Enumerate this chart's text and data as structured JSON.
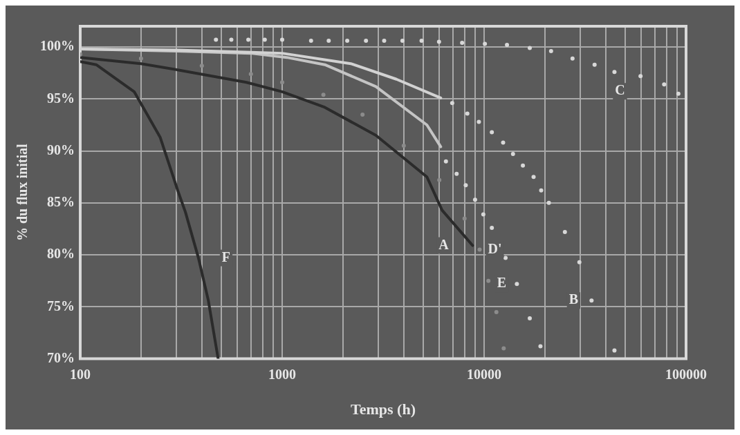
{
  "chart_data": {
    "type": "line",
    "xlabel": "Temps (h)",
    "ylabel": "% du flux initial",
    "log": "x",
    "grid": true,
    "legend": false,
    "xlim": [
      100,
      100000
    ],
    "ylim": [
      70,
      102
    ],
    "xticks": [
      100,
      {
        "value": 200,
        "label": null
      },
      {
        "value": 300,
        "label": null
      },
      {
        "value": 400,
        "label": null
      },
      {
        "value": 500,
        "label": null
      },
      {
        "value": 600,
        "label": null
      },
      {
        "value": 700,
        "label": null
      },
      {
        "value": 800,
        "label": null
      },
      {
        "value": 900,
        "label": null
      },
      1000,
      {
        "value": 2000,
        "label": null
      },
      {
        "value": 3000,
        "label": null
      },
      {
        "value": 4000,
        "label": null
      },
      {
        "value": 5000,
        "label": null
      },
      {
        "value": 6000,
        "label": null
      },
      {
        "value": 7000,
        "label": null
      },
      {
        "value": 8000,
        "label": null
      },
      {
        "value": 9000,
        "label": null
      },
      10000,
      {
        "value": 20000,
        "label": null
      },
      {
        "value": 30000,
        "label": null
      },
      {
        "value": 40000,
        "label": null
      },
      {
        "value": 50000,
        "label": null
      },
      {
        "value": 60000,
        "label": null
      },
      {
        "value": 70000,
        "label": null
      },
      {
        "value": 80000,
        "label": null
      },
      {
        "value": 90000,
        "label": null
      },
      100000
    ],
    "yticks": [
      {
        "value": 70,
        "label": "70%"
      },
      {
        "value": 75,
        "label": "75%"
      },
      {
        "value": 80,
        "label": "80%"
      },
      {
        "value": 85,
        "label": "85%"
      },
      {
        "value": 90,
        "label": "90%"
      },
      {
        "value": 95,
        "label": "95%"
      },
      {
        "value": 100,
        "label": "100%"
      }
    ],
    "series": [
      {
        "type": "scatter",
        "name": "D'",
        "marker": "circle",
        "color": "#8c8c8c",
        "x": [
          100,
          200,
          400,
          700,
          1000,
          1600,
          2500,
          4000,
          6000,
          8000,
          9500,
          10500,
          11500,
          12500
        ],
        "values": [
          99.3,
          98.9,
          98.2,
          97.4,
          96.6,
          95.4,
          93.5,
          90.5,
          87.2,
          83.5,
          80.5,
          77.5,
          74.5,
          71
        ]
      },
      {
        "line_style": "solid",
        "color": "#d2d2d2",
        "x": [
          100,
          300,
          700,
          1000,
          2188,
          3680,
          6100
        ],
        "values": [
          99.8,
          99.7,
          99.5,
          99.4,
          98.4,
          96.9,
          95.1
        ]
      },
      {
        "line_style": "solid",
        "color": "#c4c4c4",
        "x": [
          100,
          300,
          700,
          1054,
          1626,
          2911,
          5210,
          6100
        ],
        "values": [
          99.8,
          99.6,
          99.4,
          99.0,
          98.3,
          96.2,
          92.5,
          90.4
        ]
      },
      {
        "name": "A",
        "line_style": "solid",
        "color": "#2b2b2b",
        "x": [
          100,
          200,
          304,
          665,
          1000,
          1626,
          2911,
          5210,
          6190,
          8770
        ],
        "values": [
          99.0,
          98.4,
          97.8,
          96.6,
          95.7,
          94.2,
          91.5,
          87.5,
          84.3,
          80.9
        ]
      },
      {
        "name": "F",
        "line_style": "solid",
        "color": "#2b2b2b",
        "x": [
          100,
          120,
          185,
          249,
          304,
          332,
          385,
          431,
          482
        ],
        "values": [
          98.6,
          98.3,
          95.7,
          91.3,
          86.2,
          84.1,
          79.7,
          75.6,
          70
        ]
      },
      {
        "type": "scatter",
        "name": "B",
        "marker": "circle",
        "color": "#d8d8d8",
        "x": [
          6950,
          8260,
          9420,
          10920,
          12420,
          13900,
          15560,
          17580,
          19170,
          20920,
          25120,
          29630,
          34040,
          44200
        ],
        "values": [
          94.6,
          93.6,
          92.8,
          91.8,
          90.8,
          89.7,
          88.6,
          87.5,
          86.2,
          85.0,
          82.2,
          79.3,
          75.6,
          70.8
        ]
      },
      {
        "type": "scatter",
        "name": "E",
        "marker": "circle",
        "color": "#d8d8d8",
        "x": [
          6470,
          7310,
          8110,
          9020,
          9910,
          10920,
          12770,
          14530,
          16830,
          19010
        ],
        "values": [
          89.0,
          87.8,
          86.7,
          85.3,
          83.9,
          82.6,
          79.7,
          77.2,
          73.9,
          71.2
        ]
      },
      {
        "type": "scatter",
        "name": "C",
        "marker": "circle",
        "color": "#d8d8d8",
        "x": [
          470,
          560,
          680,
          820,
          1000,
          1390,
          1700,
          2100,
          2600,
          3200,
          3940,
          4900,
          5980,
          7780,
          10090,
          12980,
          16830,
          21460,
          27400,
          35240,
          44200,
          59500,
          77900,
          91600
        ],
        "values": [
          100.7,
          100.7,
          100.7,
          100.7,
          100.7,
          100.6,
          100.6,
          100.6,
          100.6,
          100.6,
          100.6,
          100.6,
          100.5,
          100.4,
          100.3,
          100.2,
          99.9,
          99.6,
          98.9,
          98.3,
          97.6,
          97.2,
          96.4,
          95.5
        ]
      }
    ]
  }
}
